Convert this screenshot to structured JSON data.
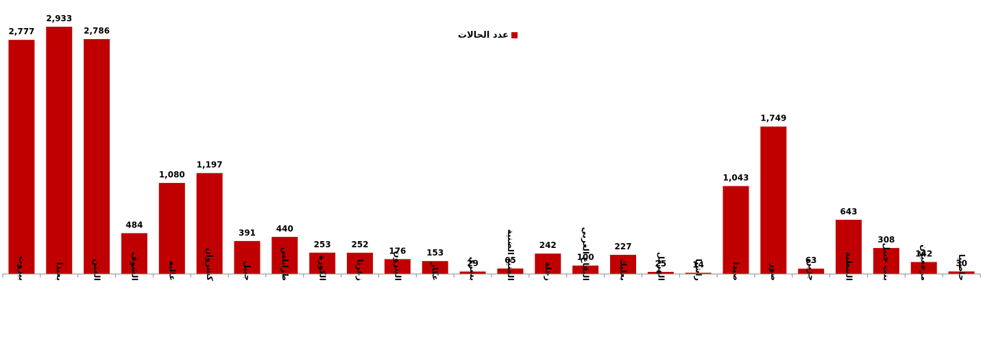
{
  "chart_data": {
    "type": "bar",
    "categories": [
      "بيروت",
      "بعبدا",
      "المتن",
      "الشوف",
      "عاليه",
      "كسروان",
      "جبيل",
      "طرابلس",
      "الكورة",
      "زغرتا",
      "البترون",
      "عكار",
      "بشري",
      "المنية الضنية",
      "زحلة",
      "البقاع الغربي",
      "بعلبك",
      "الهرمل",
      "راشيا",
      "صيدا",
      "صور",
      "جزين",
      "النبطية",
      "بنت جبيل",
      "مرجعيون",
      "حاصبيا"
    ],
    "series": [
      {
        "name": "عدد الحالات",
        "values": [
          2777,
          2933,
          2786,
          484,
          1080,
          1197,
          391,
          440,
          253,
          252,
          176,
          153,
          29,
          65,
          242,
          100,
          227,
          25,
          14,
          1043,
          1749,
          63,
          643,
          308,
          142,
          30
        ],
        "labels": [
          "2,777",
          "2,933",
          "2,786",
          "484",
          "1,080",
          "1,197",
          "391",
          "440",
          "253",
          "252",
          "176",
          "153",
          "29",
          "65",
          "242",
          "100",
          "227",
          "25",
          "14",
          "1,043",
          "1,749",
          "63",
          "643",
          "308",
          "142",
          "30"
        ]
      }
    ],
    "ylim": [
      0,
      2933
    ],
    "grid": false,
    "legend_position": "top-center",
    "colors": {
      "bar": "#c00000",
      "axis": "#888888",
      "text": "#000000"
    }
  }
}
